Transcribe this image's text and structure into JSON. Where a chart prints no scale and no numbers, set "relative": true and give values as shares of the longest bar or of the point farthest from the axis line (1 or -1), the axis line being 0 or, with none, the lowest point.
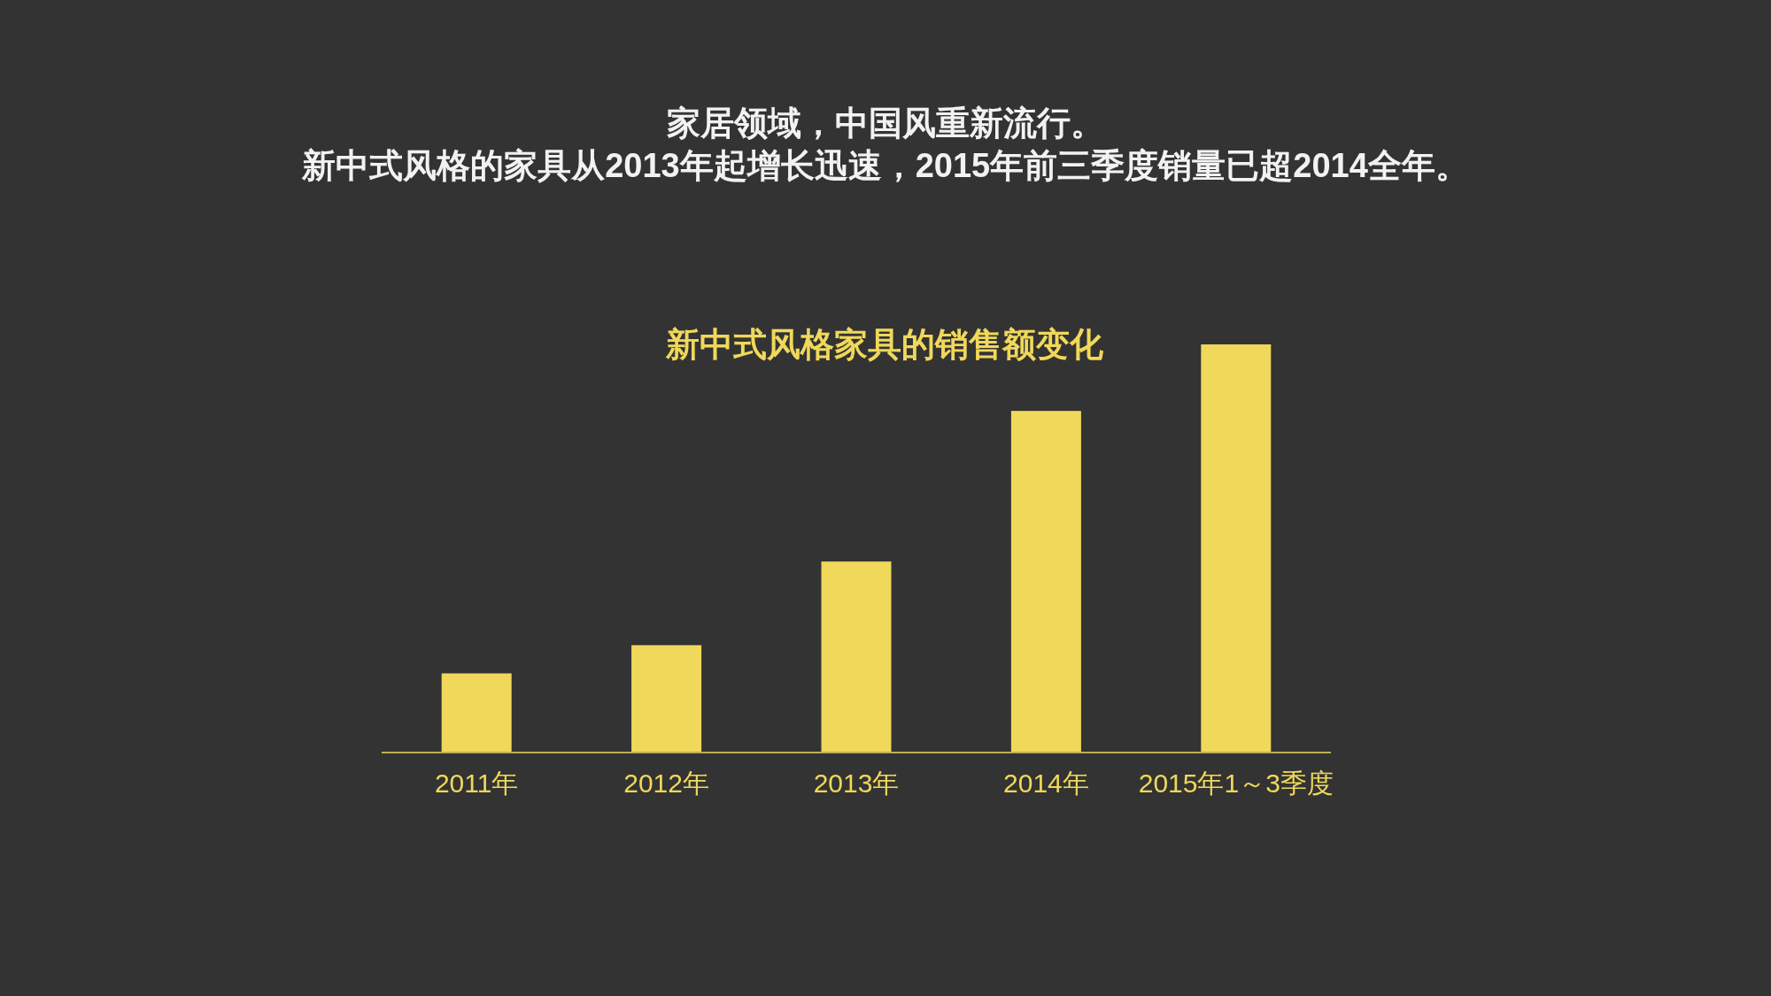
{
  "chart_data": {
    "type": "bar",
    "title": "新中式风格家具的销售额变化",
    "annotations": [
      "家居领域，中国风重新流行。",
      "新中式风格的家具从2013年起增长迅速，2015年前三季度销量已超2014全年。"
    ],
    "categories": [
      "2011年",
      "2012年",
      "2013年",
      "2014年",
      "2015年1～3季度"
    ],
    "values": [
      0.194,
      0.263,
      0.468,
      0.837,
      1
    ],
    "color": "#f0d85a",
    "relative": true
  }
}
